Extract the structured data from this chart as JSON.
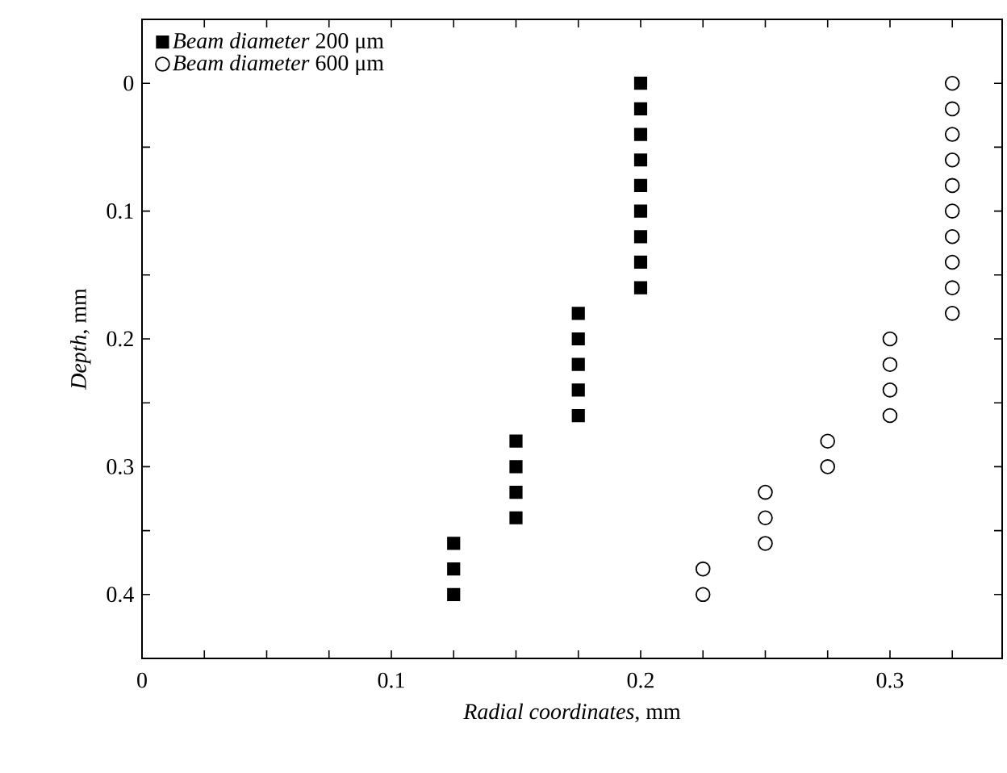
{
  "chart_data": {
    "type": "scatter",
    "xlabel": "*Radial coordinates*, mm",
    "ylabel": "*Depth*, mm",
    "xlim": [
      0,
      0.345
    ],
    "ylim": [
      0.45,
      -0.05
    ],
    "xticks": [
      0,
      {
        "value": 0.025,
        "label": null
      },
      {
        "value": 0.05,
        "label": null
      },
      {
        "value": 0.075,
        "label": null
      },
      0.1,
      {
        "value": 0.125,
        "label": null
      },
      {
        "value": 0.15,
        "label": null
      },
      {
        "value": 0.175,
        "label": null
      },
      0.2,
      {
        "value": 0.225,
        "label": null
      },
      {
        "value": 0.25,
        "label": null
      },
      {
        "value": 0.275,
        "label": null
      },
      0.3,
      {
        "value": 0.325,
        "label": null
      }
    ],
    "yticks": [
      {
        "value": -0.05,
        "label": null
      },
      0,
      {
        "value": 0.05,
        "label": null
      },
      0.1,
      {
        "value": 0.15,
        "label": null
      },
      0.2,
      {
        "value": 0.25,
        "label": null
      },
      0.3,
      {
        "value": 0.35,
        "label": null
      },
      0.4
    ],
    "legend": "top left",
    "grid": false,
    "series": [
      {
        "name": "*Beam diameter* 200 μm",
        "color": "#000000",
        "marker": "square",
        "x": [
          0.2,
          0.2,
          0.2,
          0.2,
          0.2,
          0.2,
          0.2,
          0.2,
          0.2,
          0.175,
          0.175,
          0.175,
          0.175,
          0.175,
          0.15,
          0.15,
          0.15,
          0.15,
          0.125,
          0.125,
          0.125
        ],
        "values": [
          0,
          0.02,
          0.04,
          0.06,
          0.08,
          0.1,
          0.12,
          0.14,
          0.16,
          0.18,
          0.2,
          0.22,
          0.24,
          0.26,
          0.28,
          0.3,
          0.32,
          0.34,
          0.36,
          0.38,
          0.4
        ]
      },
      {
        "name": "*Beam diameter* 600 μm",
        "color": "#000000",
        "marker": "circle",
        "x": [
          0.325,
          0.325,
          0.325,
          0.325,
          0.325,
          0.325,
          0.325,
          0.325,
          0.325,
          0.325,
          0.3,
          0.3,
          0.3,
          0.3,
          0.275,
          0.275,
          0.25,
          0.25,
          0.25,
          0.225,
          0.225
        ],
        "values": [
          0,
          0.02,
          0.04,
          0.06,
          0.08,
          0.1,
          0.12,
          0.14,
          0.16,
          0.18,
          0.2,
          0.22,
          0.24,
          0.26,
          0.28,
          0.3,
          0.32,
          0.34,
          0.36,
          0.38,
          0.4
        ]
      }
    ]
  }
}
